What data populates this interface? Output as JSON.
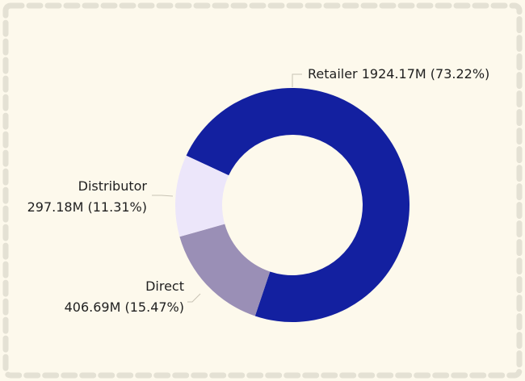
{
  "chart_data": {
    "type": "pie",
    "donut": true,
    "title": "",
    "slices": [
      {
        "name": "Retailer",
        "value": 1924.17,
        "unit": "M",
        "percent": 73.22,
        "color": "#1320a0",
        "label_line1": "Retailer 1924.17M (73.22%)",
        "label_line2": ""
      },
      {
        "name": "Direct",
        "value": 406.69,
        "unit": "M",
        "percent": 15.47,
        "color": "#9a8fb6",
        "label_line1": "Direct",
        "label_line2": "406.69M (15.47%)"
      },
      {
        "name": "Distributor",
        "value": 297.18,
        "unit": "M",
        "percent": 11.31,
        "color": "#ece6fa",
        "label_line1": "Distributor",
        "label_line2": "297.18M (11.31%)"
      }
    ],
    "start_angle_deg": -65,
    "direction": "clockwise",
    "legend": "none"
  },
  "colors": {
    "background": "#fdf9ec",
    "border_dash": "#e4e1d4",
    "leader_line": "#c8c3b4"
  }
}
